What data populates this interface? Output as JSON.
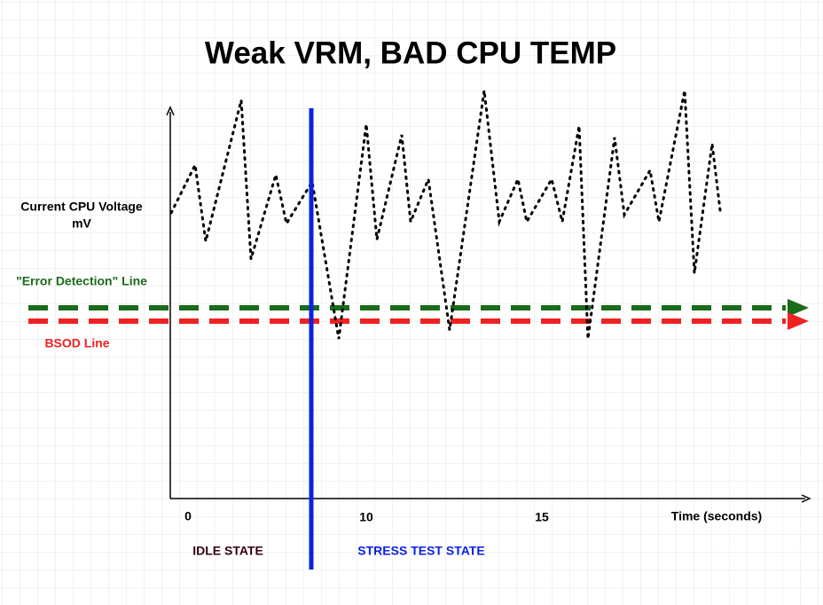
{
  "title": "Weak VRM, BAD CPU TEMP",
  "y_axis": {
    "label_lines": [
      "Current CPU Voltage",
      "mV"
    ]
  },
  "lines": {
    "error_detection": "\"Error Detection\" Line",
    "bsod": "BSOD Line"
  },
  "x_axis": {
    "labels": [
      "0",
      "10",
      "15"
    ],
    "title": "Time (seconds)"
  },
  "states": {
    "idle": "IDLE STATE",
    "stress": "STRESS TEST STATE"
  }
}
